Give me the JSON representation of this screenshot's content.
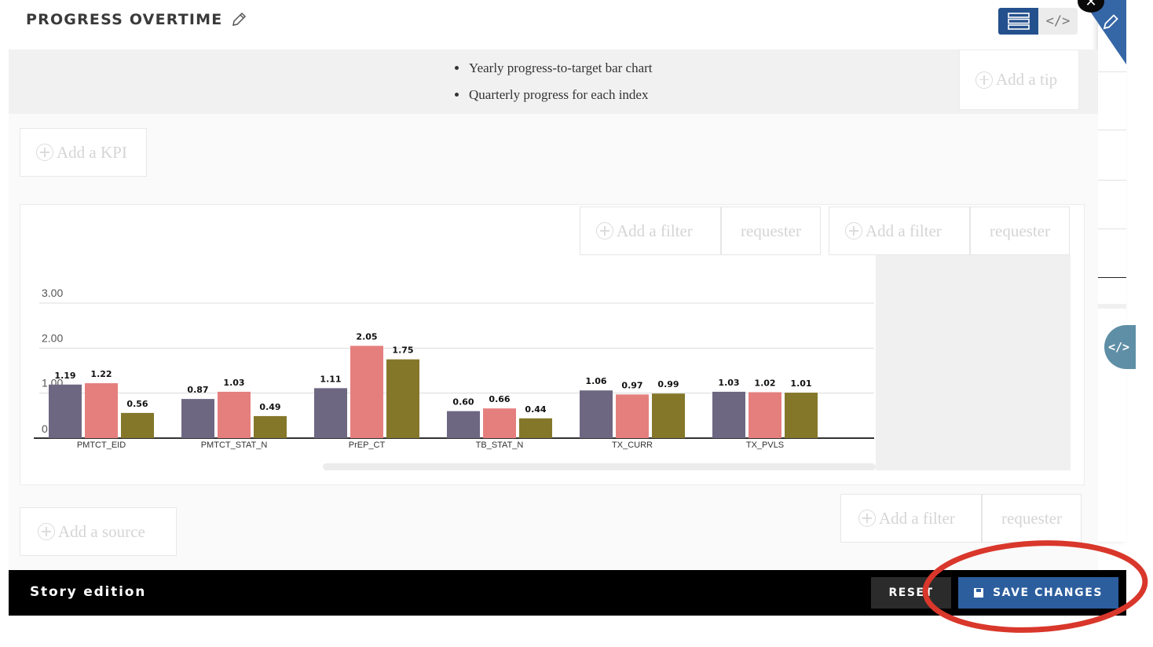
{
  "header": {
    "title": "PROGRESS OVERTIME",
    "toggle": {
      "layout_icon": "layout-rows-icon",
      "code_label": "</>"
    }
  },
  "description": {
    "bullets": [
      "Yearly progress-to-target bar chart",
      "Quarterly progress for each index"
    ]
  },
  "placeholders": {
    "add_tip": "Add a tip",
    "add_kpi": "Add a KPI",
    "add_filter": "Add a filter",
    "requester": "requester",
    "add_source": "Add a source"
  },
  "side": {
    "close_label": "✕",
    "code_label": "</>"
  },
  "footer": {
    "label": "Story edition",
    "reset_label": "RESET",
    "save_label": "SAVE CHANGES"
  },
  "colors": {
    "series": [
      "#6e6781",
      "#e57f7e",
      "#84772a"
    ],
    "primary_button": "#2c5e9e",
    "annotation": "#d9372b"
  },
  "chart_data": {
    "type": "bar",
    "title": "",
    "xlabel": "",
    "ylabel": "",
    "ylim": [
      0,
      3
    ],
    "yticks": [
      "0",
      "1.00",
      "2.00",
      "3.00"
    ],
    "grid": true,
    "categories": [
      "PMTCT_EID",
      "PMTCT_STAT_N",
      "PrEP_CT",
      "TB_STAT_N",
      "TX_CURR",
      "TX_PVLS"
    ],
    "series": [
      {
        "values": [
          1.19,
          0.87,
          1.11,
          0.6,
          1.06,
          1.03
        ],
        "labels": [
          "1.19",
          "0.87",
          "1.11",
          "0.60",
          "1.06",
          "1.03"
        ]
      },
      {
        "values": [
          1.22,
          1.03,
          2.05,
          0.66,
          0.97,
          1.02
        ],
        "labels": [
          "1.22",
          "1.03",
          "2.05",
          "0.66",
          "0.97",
          "1.02"
        ]
      },
      {
        "values": [
          0.56,
          0.49,
          1.75,
          0.44,
          0.99,
          1.01
        ],
        "labels": [
          "0.56",
          "0.49",
          "1.75",
          "0.44",
          "0.99",
          "1.01"
        ]
      }
    ]
  }
}
